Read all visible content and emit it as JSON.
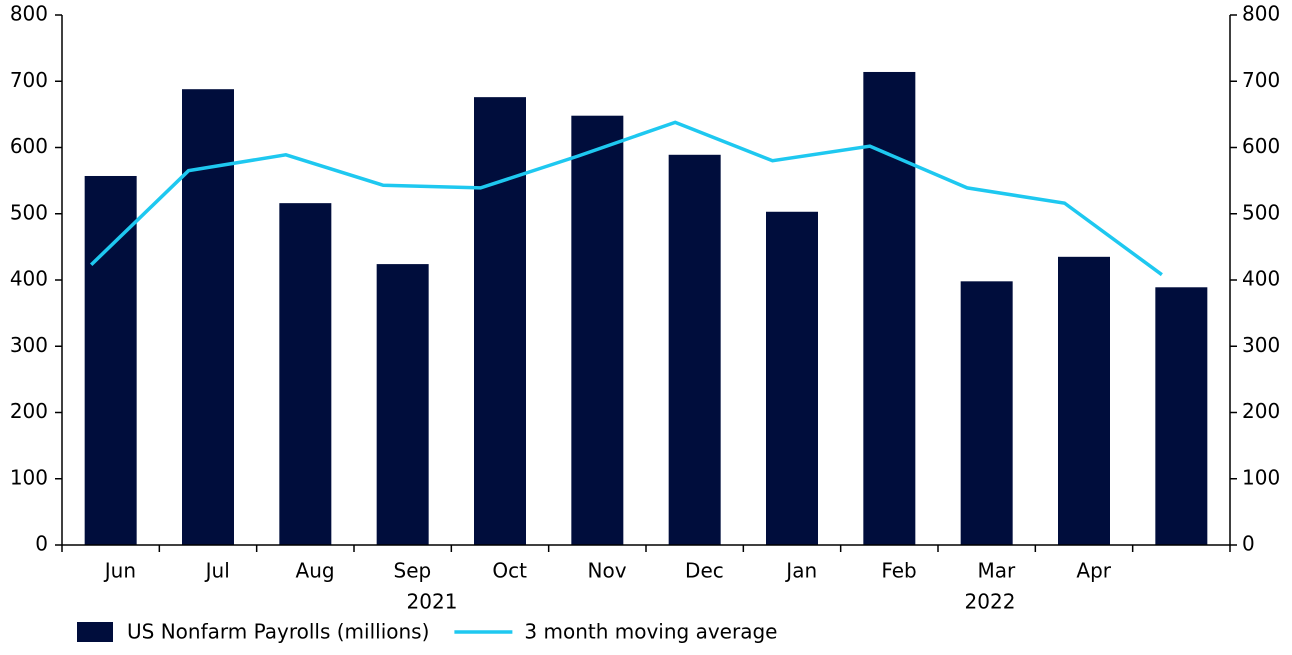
{
  "chart_data": {
    "type": "bar",
    "categories": [
      "Jun",
      "Jul",
      "Aug",
      "Sep",
      "Oct",
      "Nov",
      "Dec",
      "Jan",
      "Feb",
      "Mar",
      "Apr",
      null
    ],
    "year_labels": [
      "2021",
      "2022"
    ],
    "series": [
      {
        "name": "US Nonfarm Payrolls (millions)",
        "type": "bar",
        "color": "#000d3c",
        "values": [
          557,
          688,
          516,
          424,
          676,
          648,
          589,
          503,
          714,
          398,
          435,
          389
        ]
      },
      {
        "name": "3 month moving average",
        "type": "line",
        "color": "#1ec8f0",
        "axis": "y2",
        "values": [
          423,
          565,
          589,
          543,
          539,
          587,
          638,
          580,
          602,
          539,
          516,
          408
        ]
      }
    ],
    "ylim": [
      0,
      800
    ],
    "yticks": [
      0,
      100,
      200,
      300,
      400,
      500,
      600,
      700,
      800
    ],
    "y2lim": [
      0,
      800
    ],
    "y2ticks": [
      0,
      100,
      200,
      300,
      400,
      500,
      600,
      700,
      800
    ],
    "legend": "bottom"
  }
}
